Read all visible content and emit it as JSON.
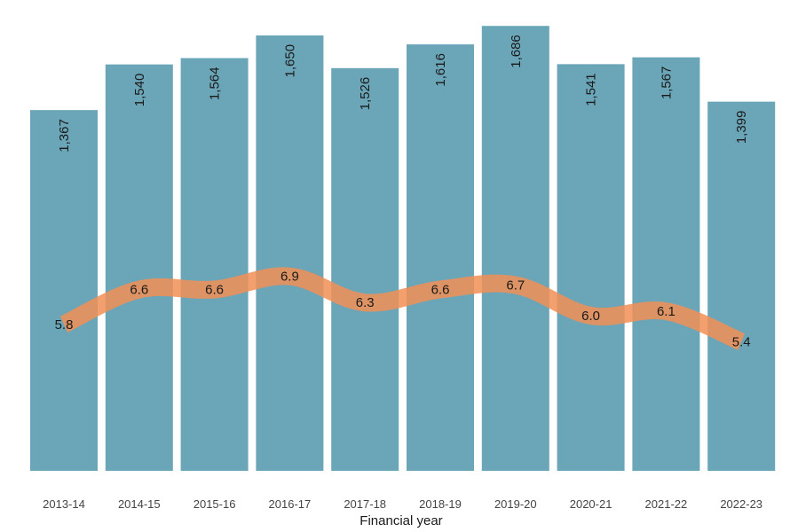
{
  "chart_data": {
    "type": "bar",
    "xlabel": "Financial year",
    "categories": [
      "2013-14",
      "2014-15",
      "2015-16",
      "2016-17",
      "2017-18",
      "2018-19",
      "2019-20",
      "2020-21",
      "2021-22",
      "2022-23"
    ],
    "series": [
      {
        "type": "bar",
        "values": [
          1367,
          1540,
          1564,
          1650,
          1526,
          1616,
          1686,
          1541,
          1567,
          1399
        ],
        "labels": [
          "1,367",
          "1,540",
          "1,564",
          "1,650",
          "1,526",
          "1,616",
          "1,686",
          "1,541",
          "1,567",
          "1,399"
        ],
        "color": "#6ba5b8"
      },
      {
        "type": "line",
        "values": [
          5.8,
          6.6,
          6.6,
          6.9,
          6.3,
          6.6,
          6.7,
          6.0,
          6.1,
          5.4
        ],
        "labels": [
          "5.8",
          "6.6",
          "6.6",
          "6.9",
          "6.3",
          "6.6",
          "6.7",
          "6.0",
          "6.1",
          "5.4"
        ],
        "color": "#f28f55"
      }
    ],
    "grid": false,
    "legend": "none"
  }
}
